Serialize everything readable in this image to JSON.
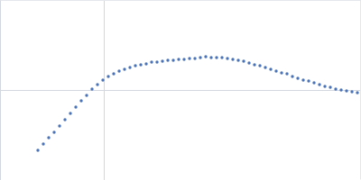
{
  "chart_data": {
    "type": "scatter",
    "x": [
      -0.73,
      -0.67,
      -0.61,
      -0.55,
      -0.49,
      -0.43,
      -0.37,
      -0.31,
      -0.25,
      -0.19,
      -0.13,
      -0.07,
      -0.01,
      0.05,
      0.11,
      0.17,
      0.23,
      0.29,
      0.35,
      0.41,
      0.47,
      0.53,
      0.59,
      0.65,
      0.71,
      0.77,
      0.83,
      0.89,
      0.95,
      1.01,
      1.07,
      1.13,
      1.19,
      1.25,
      1.31,
      1.37,
      1.43,
      1.49,
      1.55,
      1.61,
      1.67,
      1.73,
      1.79,
      1.85,
      1.91,
      1.97,
      2.03,
      2.09,
      2.15,
      2.21,
      2.27,
      2.33,
      2.39,
      2.45,
      2.51,
      2.57,
      2.63,
      2.69,
      2.75,
      2.81
    ],
    "values": [
      -0.67,
      -0.6,
      -0.53,
      -0.47,
      -0.4,
      -0.33,
      -0.26,
      -0.19,
      -0.12,
      -0.06,
      0.01,
      0.06,
      0.11,
      0.15,
      0.18,
      0.21,
      0.23,
      0.25,
      0.27,
      0.28,
      0.29,
      0.31,
      0.31,
      0.32,
      0.33,
      0.33,
      0.34,
      0.34,
      0.35,
      0.35,
      0.36,
      0.37,
      0.36,
      0.36,
      0.36,
      0.35,
      0.34,
      0.33,
      0.32,
      0.3,
      0.28,
      0.27,
      0.25,
      0.23,
      0.21,
      0.19,
      0.18,
      0.15,
      0.13,
      0.11,
      0.1,
      0.08,
      0.06,
      0.04,
      0.03,
      0.01,
      0,
      -0.01,
      -0.02,
      -0.03
    ],
    "color": "#4a72b8",
    "marker": "circle",
    "xlim": [
      -1.15,
      2.85
    ],
    "ylim": [
      -1,
      1
    ],
    "xticks": [
      0
    ],
    "yticks": [
      0
    ],
    "grid": true,
    "tick_labels": false
  }
}
